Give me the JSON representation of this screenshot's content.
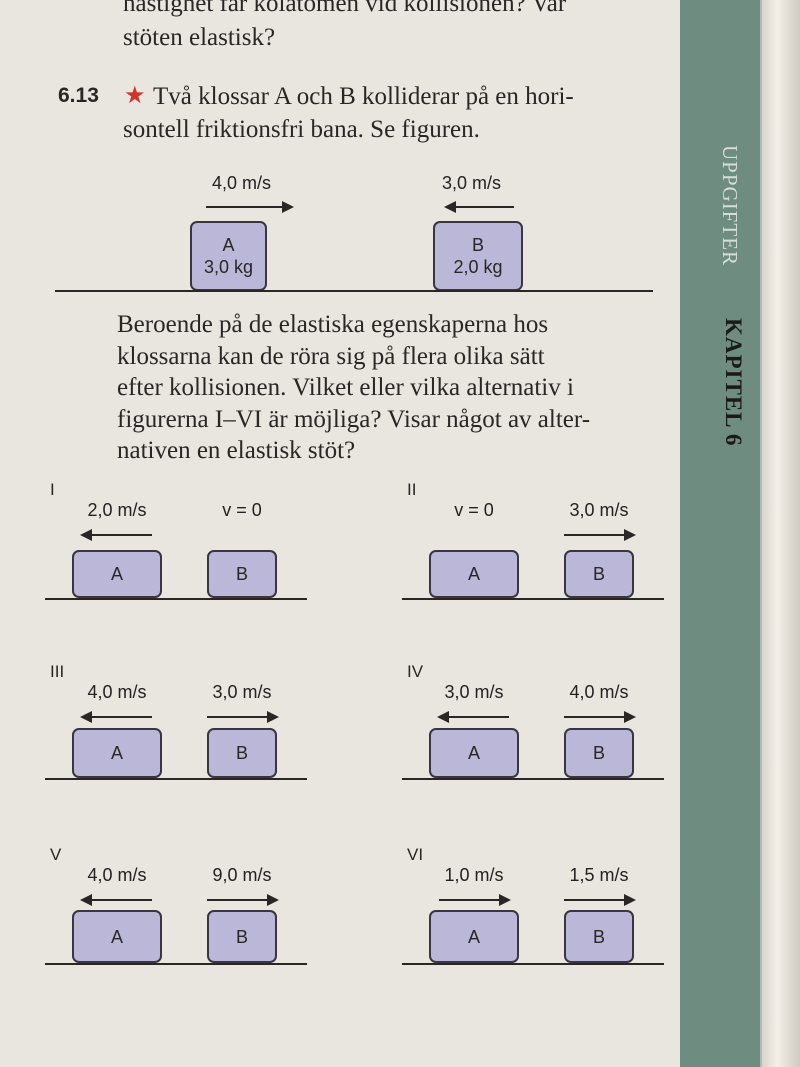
{
  "previous_task": {
    "line1": "hastighet får kolatomen vid kollisionen? Var",
    "line2": "stöten elastisk?"
  },
  "task": {
    "number": "6.13",
    "star_icon": "star",
    "line1": "Två klossar A och B kolliderar på en hori-",
    "line2": "sontell friktionsfri bana. Se figuren.",
    "figure": {
      "a": {
        "velocity": "4,0 m/s",
        "direction": "right",
        "name": "A",
        "mass": "3,0 kg"
      },
      "b": {
        "velocity": "3,0 m/s",
        "direction": "left",
        "name": "B",
        "mass": "2,0 kg"
      }
    },
    "body": [
      "Beroende på de elastiska egenskaperna hos",
      "klossarna kan de röra sig på flera olika sätt",
      "efter kollisionen. Vilket eller vilka alternativ i",
      "figurerna I–VI är möjliga? Visar något av alter-",
      "nativen en elastisk stöt?"
    ],
    "alternatives": [
      {
        "label": "I",
        "a": {
          "name": "A",
          "velocity": "2,0 m/s",
          "direction": "left"
        },
        "b": {
          "name": "B",
          "velocity": "v = 0",
          "direction": "none"
        }
      },
      {
        "label": "II",
        "a": {
          "name": "A",
          "velocity": "v = 0",
          "direction": "none"
        },
        "b": {
          "name": "B",
          "velocity": "3,0 m/s",
          "direction": "right"
        }
      },
      {
        "label": "III",
        "a": {
          "name": "A",
          "velocity": "4,0 m/s",
          "direction": "left"
        },
        "b": {
          "name": "B",
          "velocity": "3,0 m/s",
          "direction": "right"
        }
      },
      {
        "label": "IV",
        "a": {
          "name": "A",
          "velocity": "3,0 m/s",
          "direction": "left"
        },
        "b": {
          "name": "B",
          "velocity": "4,0 m/s",
          "direction": "right"
        }
      },
      {
        "label": "V",
        "a": {
          "name": "A",
          "velocity": "4,0 m/s",
          "direction": "left"
        },
        "b": {
          "name": "B",
          "velocity": "9,0 m/s",
          "direction": "right"
        }
      },
      {
        "label": "VI",
        "a": {
          "name": "A",
          "velocity": "1,0 m/s",
          "direction": "right"
        },
        "b": {
          "name": "B",
          "velocity": "1,5 m/s",
          "direction": "right"
        }
      }
    ]
  },
  "side_tab": {
    "section": "UPPGIFTER",
    "chapter": "KAPITEL 6"
  },
  "colors": {
    "band": "#6e8d80",
    "block": "#bbb7d8",
    "star": "#d2322d",
    "page": "#e9e5df"
  }
}
